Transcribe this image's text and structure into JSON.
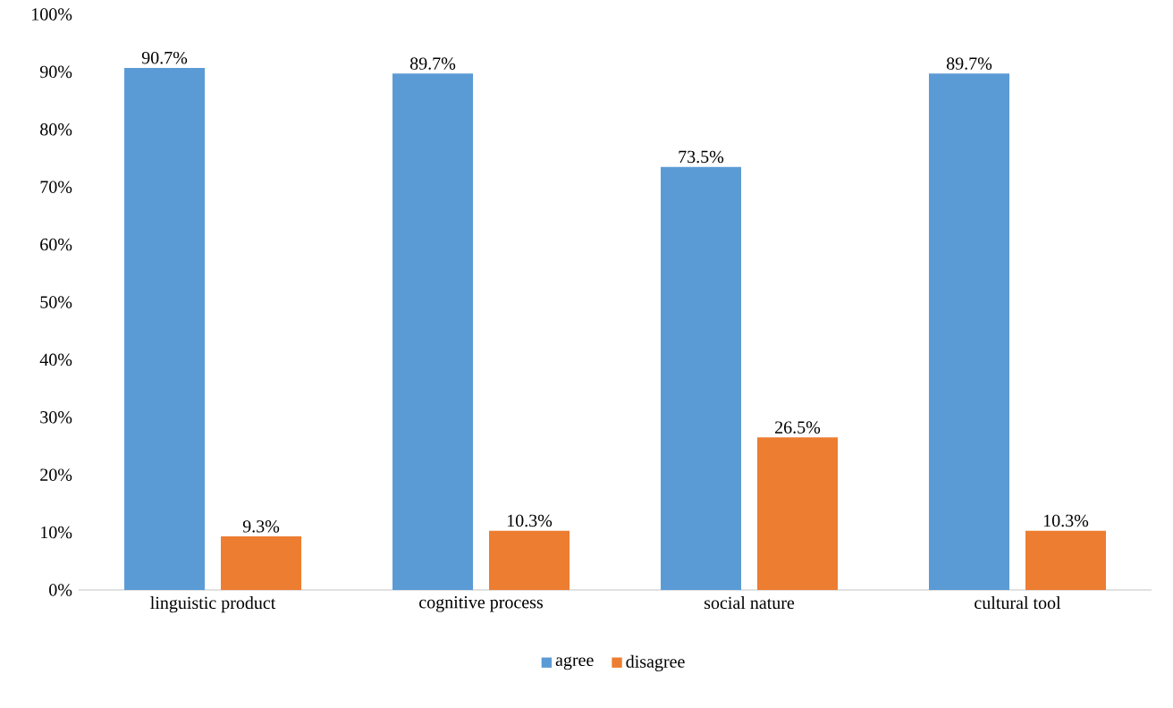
{
  "chart_data": {
    "type": "bar",
    "categories": [
      "linguistic product",
      "cognitive process",
      "social nature",
      "cultural tool"
    ],
    "series": [
      {
        "name": "agree",
        "color": "#5b9bd5",
        "values": [
          90.7,
          89.7,
          73.5,
          89.7
        ],
        "value_labels": [
          "90.7%",
          "89.7%",
          "73.5%",
          "89.7%"
        ]
      },
      {
        "name": "disagree",
        "color": "#ed7d31",
        "values": [
          9.3,
          10.3,
          26.5,
          10.3
        ],
        "value_labels": [
          "9.3%",
          "10.3%",
          "26.5%",
          "10.3%"
        ]
      }
    ],
    "ylim": [
      0,
      100
    ],
    "yticks": [
      {
        "value": 0,
        "label": "0%"
      },
      {
        "value": 10,
        "label": "10%"
      },
      {
        "value": 20,
        "label": "20%"
      },
      {
        "value": 30,
        "label": "30%"
      },
      {
        "value": 40,
        "label": "40%"
      },
      {
        "value": 50,
        "label": "50%"
      },
      {
        "value": 60,
        "label": "60%"
      },
      {
        "value": 70,
        "label": "70%"
      },
      {
        "value": 80,
        "label": "80%"
      },
      {
        "value": 90,
        "label": "90%"
      },
      {
        "value": 100,
        "label": "100%"
      }
    ],
    "grid": false,
    "legend": "bottom"
  }
}
